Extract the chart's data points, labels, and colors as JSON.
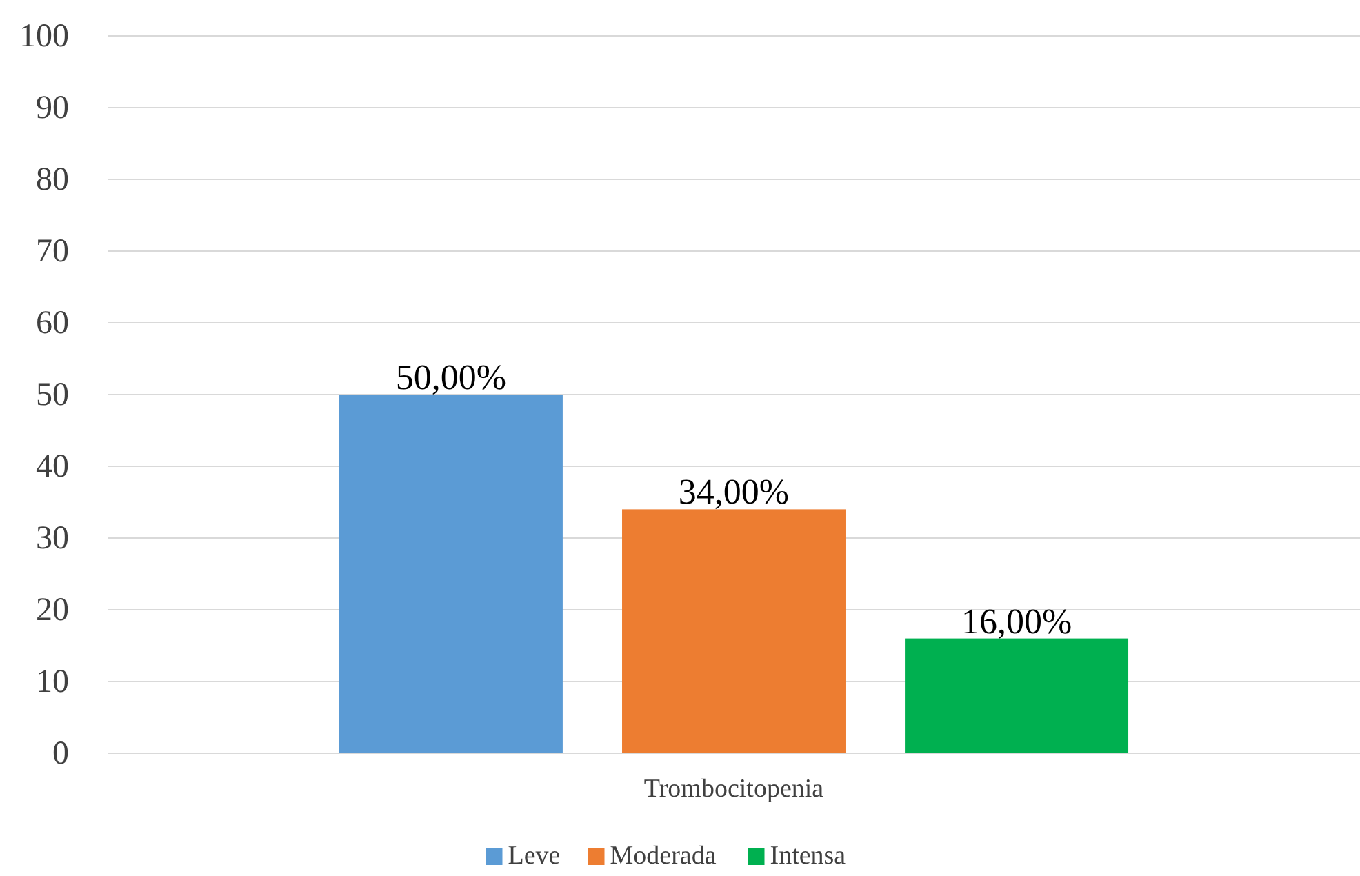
{
  "chart_data": {
    "type": "bar",
    "categories": [
      "Trombocitopenia"
    ],
    "series": [
      {
        "name": "Leve",
        "color": "#5b9bd5",
        "values": [
          50
        ],
        "value_labels": [
          "50,00%"
        ]
      },
      {
        "name": "Moderada",
        "color": "#ed7d31",
        "values": [
          34
        ],
        "value_labels": [
          "34,00%"
        ]
      },
      {
        "name": "Intensa",
        "color": "#00b050",
        "values": [
          16
        ],
        "value_labels": [
          "16,00%"
        ]
      }
    ],
    "ylim": [
      0,
      100
    ],
    "yticks": [
      0,
      10,
      20,
      30,
      40,
      50,
      60,
      70,
      80,
      90,
      100
    ],
    "grid": "y",
    "legend": "bottom"
  }
}
